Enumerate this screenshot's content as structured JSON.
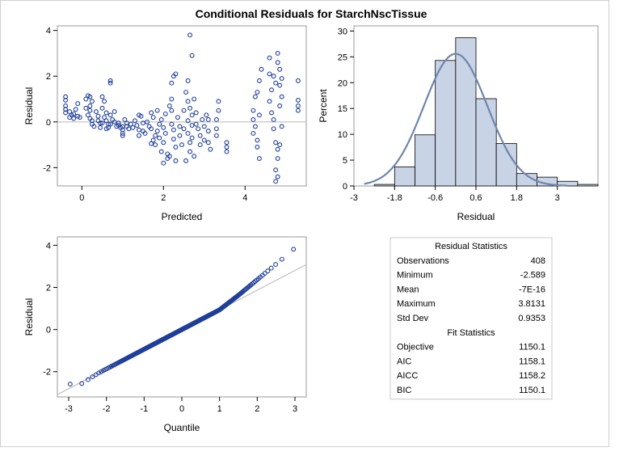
{
  "title": "Conditional Residuals for StarchNscTissue",
  "colors": {
    "marker": "#1f3f9a",
    "bar_fill": "#c8d3e6",
    "bar_stroke": "#000000",
    "density_line": "#6f86aa",
    "ref_line": "#bfbfbf",
    "frame": "#9a9a9a"
  },
  "chart_data": [
    {
      "type": "scatter",
      "title": "",
      "xlabel": "Predicted",
      "ylabel": "Residual",
      "xlim": [
        -0.6,
        5.5
      ],
      "ylim": [
        -2.8,
        4.2
      ],
      "xticks": [
        0,
        2,
        4
      ],
      "yticks": [
        -2,
        0,
        2,
        4
      ],
      "reference_line_y": 0,
      "points": [
        [
          -0.4,
          1.1
        ],
        [
          -0.4,
          0.95
        ],
        [
          -0.4,
          0.7
        ],
        [
          -0.4,
          0.55
        ],
        [
          -0.4,
          0.4
        ],
        [
          -0.3,
          0.45
        ],
        [
          -0.25,
          0.3
        ],
        [
          -0.2,
          0.35
        ],
        [
          -0.3,
          0.2
        ],
        [
          -0.2,
          0.15
        ],
        [
          -0.1,
          0.8
        ],
        [
          -0.15,
          0.55
        ],
        [
          -0.1,
          0.25
        ],
        [
          -0.05,
          0.2
        ],
        [
          0.1,
          1.0
        ],
        [
          0.15,
          1.15
        ],
        [
          0.2,
          1.1
        ],
        [
          0.25,
          0.9
        ],
        [
          0.1,
          0.6
        ],
        [
          0.2,
          0.5
        ],
        [
          0.15,
          0.3
        ],
        [
          0.2,
          0.15
        ],
        [
          0.25,
          0.05
        ],
        [
          0.25,
          -0.1
        ],
        [
          0.3,
          -0.2
        ],
        [
          0.2,
          0.7
        ],
        [
          0.35,
          0.45
        ],
        [
          0.4,
          0.25
        ],
        [
          0.4,
          0.05
        ],
        [
          0.45,
          -0.05
        ],
        [
          0.5,
          1.1
        ],
        [
          0.55,
          0.9
        ],
        [
          0.5,
          0.6
        ],
        [
          0.6,
          0.4
        ],
        [
          0.55,
          0.2
        ],
        [
          0.5,
          -0.05
        ],
        [
          0.45,
          -0.25
        ],
        [
          0.6,
          0.05
        ],
        [
          0.65,
          -0.1
        ],
        [
          0.7,
          1.7
        ],
        [
          0.7,
          1.8
        ],
        [
          0.7,
          0.3
        ],
        [
          0.75,
          0.1
        ],
        [
          0.7,
          -0.1
        ],
        [
          0.65,
          -0.25
        ],
        [
          0.6,
          -0.3
        ],
        [
          0.8,
          0.45
        ],
        [
          0.8,
          0.0
        ],
        [
          0.85,
          -0.2
        ],
        [
          0.9,
          -0.05
        ],
        [
          0.9,
          -0.15
        ],
        [
          0.95,
          -0.25
        ],
        [
          1.0,
          -0.2
        ],
        [
          1.0,
          -0.35
        ],
        [
          1.05,
          0.1
        ],
        [
          1.1,
          -0.05
        ],
        [
          1.1,
          -0.2
        ],
        [
          1.15,
          -0.3
        ],
        [
          1.0,
          -0.5
        ],
        [
          1.0,
          -0.6
        ],
        [
          1.2,
          -0.1
        ],
        [
          1.25,
          -0.25
        ],
        [
          1.3,
          0.05
        ],
        [
          1.35,
          -0.15
        ],
        [
          1.4,
          0.3
        ],
        [
          1.45,
          0.25
        ],
        [
          1.4,
          -0.35
        ],
        [
          1.5,
          -0.05
        ],
        [
          1.5,
          -0.4
        ],
        [
          1.55,
          -0.5
        ],
        [
          1.4,
          -0.6
        ],
        [
          1.6,
          0.0
        ],
        [
          1.65,
          -0.2
        ],
        [
          1.7,
          0.4
        ],
        [
          1.75,
          0.2
        ],
        [
          1.7,
          -0.3
        ],
        [
          1.75,
          -0.8
        ],
        [
          1.7,
          -0.95
        ],
        [
          1.8,
          -0.6
        ],
        [
          1.8,
          -1.0
        ],
        [
          1.85,
          -0.4
        ],
        [
          1.85,
          0.5
        ],
        [
          1.9,
          -0.1
        ],
        [
          1.9,
          -0.7
        ],
        [
          1.95,
          -1.3
        ],
        [
          1.95,
          0.1
        ],
        [
          2.0,
          -0.25
        ],
        [
          2.0,
          -0.9
        ],
        [
          2.05,
          0.35
        ],
        [
          2.05,
          -0.5
        ],
        [
          2.1,
          -1.4
        ],
        [
          2.1,
          -1.6
        ],
        [
          2.0,
          -1.8
        ],
        [
          2.15,
          0.7
        ],
        [
          2.2,
          0.5
        ],
        [
          2.2,
          1.0
        ],
        [
          2.2,
          -0.1
        ],
        [
          2.25,
          -0.35
        ],
        [
          2.25,
          -0.75
        ],
        [
          2.3,
          -1.1
        ],
        [
          2.3,
          -1.7
        ],
        [
          2.15,
          -1.5
        ],
        [
          2.2,
          1.7
        ],
        [
          2.25,
          2.0
        ],
        [
          2.3,
          2.1
        ],
        [
          2.35,
          0.2
        ],
        [
          2.4,
          -0.2
        ],
        [
          2.4,
          -0.6
        ],
        [
          2.45,
          -1.0
        ],
        [
          2.5,
          0.5
        ],
        [
          2.5,
          -0.3
        ],
        [
          2.55,
          1.3
        ],
        [
          2.6,
          0.9
        ],
        [
          2.6,
          0.05
        ],
        [
          2.6,
          -0.5
        ],
        [
          2.65,
          -0.9
        ],
        [
          2.65,
          -1.3
        ],
        [
          2.55,
          -1.7
        ],
        [
          2.6,
          1.8
        ],
        [
          2.65,
          0.6
        ],
        [
          2.7,
          0.3
        ],
        [
          2.7,
          -0.15
        ],
        [
          2.7,
          -0.7
        ],
        [
          2.75,
          -1.5
        ],
        [
          2.65,
          3.8
        ],
        [
          2.7,
          2.9
        ],
        [
          2.75,
          1.0
        ],
        [
          2.8,
          0.4
        ],
        [
          2.8,
          -0.1
        ],
        [
          2.85,
          -0.3
        ],
        [
          2.9,
          -0.6
        ],
        [
          2.9,
          -1.0
        ],
        [
          2.95,
          0.1
        ],
        [
          3.0,
          -0.2
        ],
        [
          3.0,
          -0.8
        ],
        [
          3.05,
          0.3
        ],
        [
          3.1,
          -0.4
        ],
        [
          3.1,
          -0.9
        ],
        [
          3.15,
          -1.2
        ],
        [
          3.1,
          0.1
        ],
        [
          3.3,
          0.1
        ],
        [
          3.35,
          0.5
        ],
        [
          3.35,
          0.9
        ],
        [
          3.3,
          -0.3
        ],
        [
          3.3,
          -0.6
        ],
        [
          3.55,
          -0.9
        ],
        [
          3.55,
          -1.1
        ],
        [
          3.55,
          -1.3
        ],
        [
          4.2,
          0.5
        ],
        [
          4.25,
          1.1
        ],
        [
          4.3,
          1.3
        ],
        [
          4.2,
          0.1
        ],
        [
          4.25,
          -0.2
        ],
        [
          4.2,
          -0.5
        ],
        [
          4.3,
          -0.8
        ],
        [
          4.3,
          -1.1
        ],
        [
          4.35,
          -1.6
        ],
        [
          4.35,
          1.8
        ],
        [
          4.4,
          2.3
        ],
        [
          4.35,
          0.3
        ],
        [
          4.6,
          2.8
        ],
        [
          4.6,
          2.1
        ],
        [
          4.65,
          1.4
        ],
        [
          4.6,
          0.9
        ],
        [
          4.65,
          0.4
        ],
        [
          4.7,
          0.1
        ],
        [
          4.7,
          -0.3
        ],
        [
          4.75,
          -0.9
        ],
        [
          4.8,
          -1.2
        ],
        [
          4.8,
          -1.6
        ],
        [
          4.75,
          -2.1
        ],
        [
          4.8,
          -2.4
        ],
        [
          4.75,
          -2.6
        ],
        [
          4.8,
          3.0
        ],
        [
          4.8,
          2.6
        ],
        [
          4.85,
          2.3
        ],
        [
          4.9,
          1.9
        ],
        [
          4.85,
          1.6
        ],
        [
          4.9,
          1.1
        ],
        [
          4.85,
          0.7
        ],
        [
          4.9,
          -0.2
        ],
        [
          4.85,
          -1.0
        ],
        [
          4.7,
          2.0
        ],
        [
          4.75,
          1.7
        ],
        [
          5.3,
          1.8
        ],
        [
          5.3,
          0.95
        ],
        [
          5.3,
          0.7
        ],
        [
          5.3,
          0.5
        ]
      ]
    },
    {
      "type": "bar",
      "title": "",
      "xlabel": "Residual",
      "ylabel": "Percent",
      "xlim": [
        -3.0,
        4.2
      ],
      "ylim": [
        0,
        31
      ],
      "xticks": [
        -3,
        -1.8,
        -0.6,
        0.6,
        1.8,
        3
      ],
      "yticks": [
        0,
        5,
        10,
        15,
        20,
        25,
        30
      ],
      "bin_width": 0.6,
      "bin_starts": [
        -2.4,
        -1.8,
        -1.2,
        -0.6,
        0.0,
        0.6,
        1.2,
        1.8,
        2.4,
        3.0,
        3.6
      ],
      "values": [
        0.3,
        3.7,
        9.9,
        24.3,
        28.7,
        16.9,
        8.2,
        2.4,
        1.7,
        0.9,
        0.3
      ],
      "density": {
        "mean": 0.0,
        "sd": 0.9353
      }
    },
    {
      "type": "scatter",
      "title": "",
      "xlabel": "Quantile",
      "ylabel": "Residual",
      "xlim": [
        -3.3,
        3.3
      ],
      "ylim": [
        -3.2,
        4.4
      ],
      "xticks": [
        -3,
        -2,
        -1,
        0,
        1,
        2,
        3
      ],
      "yticks": [
        -2,
        0,
        2,
        4
      ],
      "reference_line": {
        "intercept": 0,
        "slope": 0.9353
      },
      "qq_sample": {
        "n": 408,
        "min": -2.589,
        "max": 3.8131
      }
    }
  ],
  "stats": {
    "residual_header": "Residual Statistics",
    "residual_rows": [
      {
        "label": "Observations",
        "value": "408"
      },
      {
        "label": "Minimum",
        "value": "-2.589"
      },
      {
        "label": "Mean",
        "value": "-7E-16"
      },
      {
        "label": "Maximum",
        "value": "3.8131"
      },
      {
        "label": "Std Dev",
        "value": "0.9353"
      }
    ],
    "fit_header": "Fit Statistics",
    "fit_rows": [
      {
        "label": "Objective",
        "value": "1150.1"
      },
      {
        "label": "AIC",
        "value": "1158.1"
      },
      {
        "label": "AICC",
        "value": "1158.2"
      },
      {
        "label": "BIC",
        "value": "1150.1"
      }
    ]
  }
}
